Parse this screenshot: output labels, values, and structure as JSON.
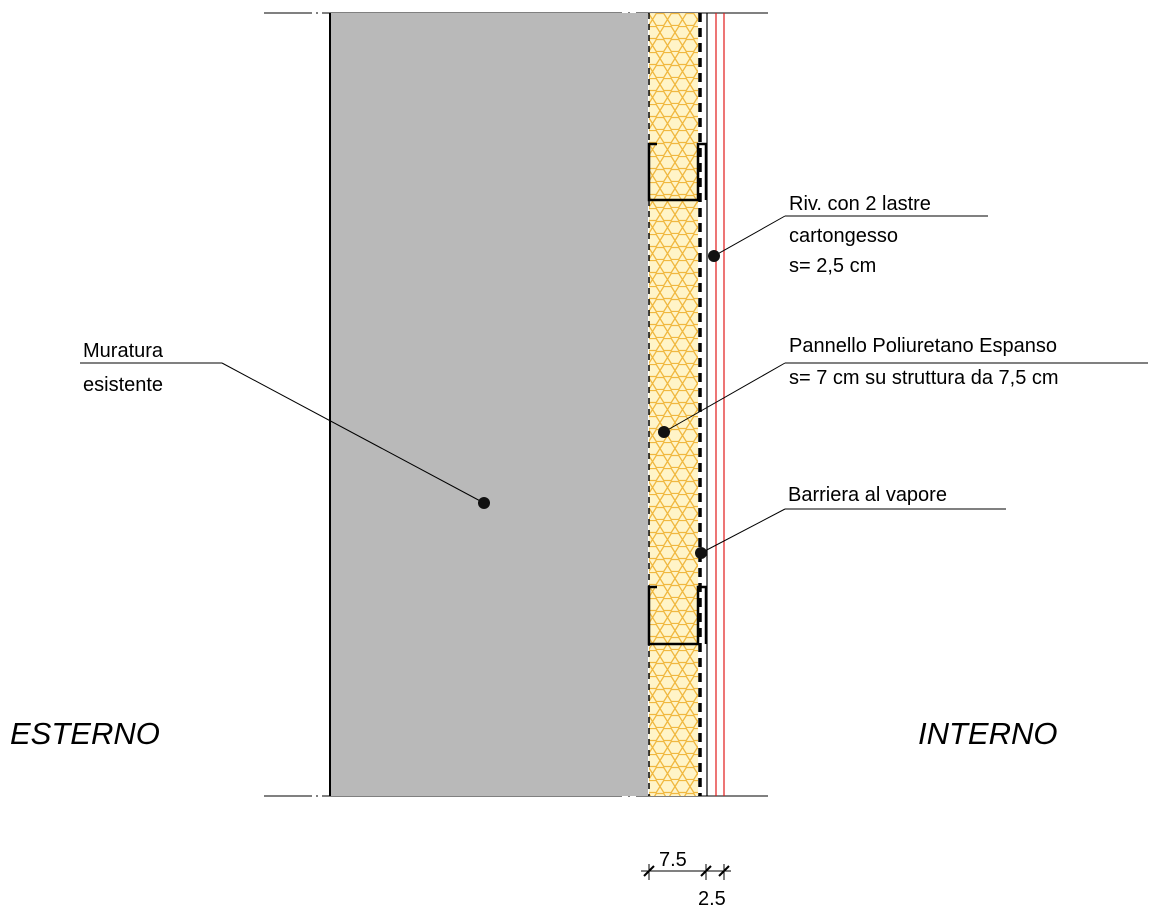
{
  "sides": {
    "exterior": "ESTERNO",
    "interior": "INTERNO"
  },
  "callouts": {
    "masonry": {
      "line1": "Muratura",
      "line2": "esistente"
    },
    "plasterboard": {
      "line1": "Riv. con 2 lastre",
      "line2": "cartongesso",
      "line3": "s= 2,5 cm"
    },
    "insulation": {
      "line1": "Pannello Poliuretano Espanso",
      "line2": "s= 7 cm su struttura da 7,5 cm"
    },
    "vapour_barrier": {
      "line1": "Barriera al vapore"
    }
  },
  "dimensions": {
    "insulation_structure": "7.5",
    "plasterboard": "2.5"
  },
  "colors": {
    "masonry_fill": "#b9b9b9",
    "insulation_fill": "#fff4c8",
    "insulation_hatch": "#f0b840",
    "plasterboard_lines": "#e11a1a",
    "ink": "#000000"
  }
}
